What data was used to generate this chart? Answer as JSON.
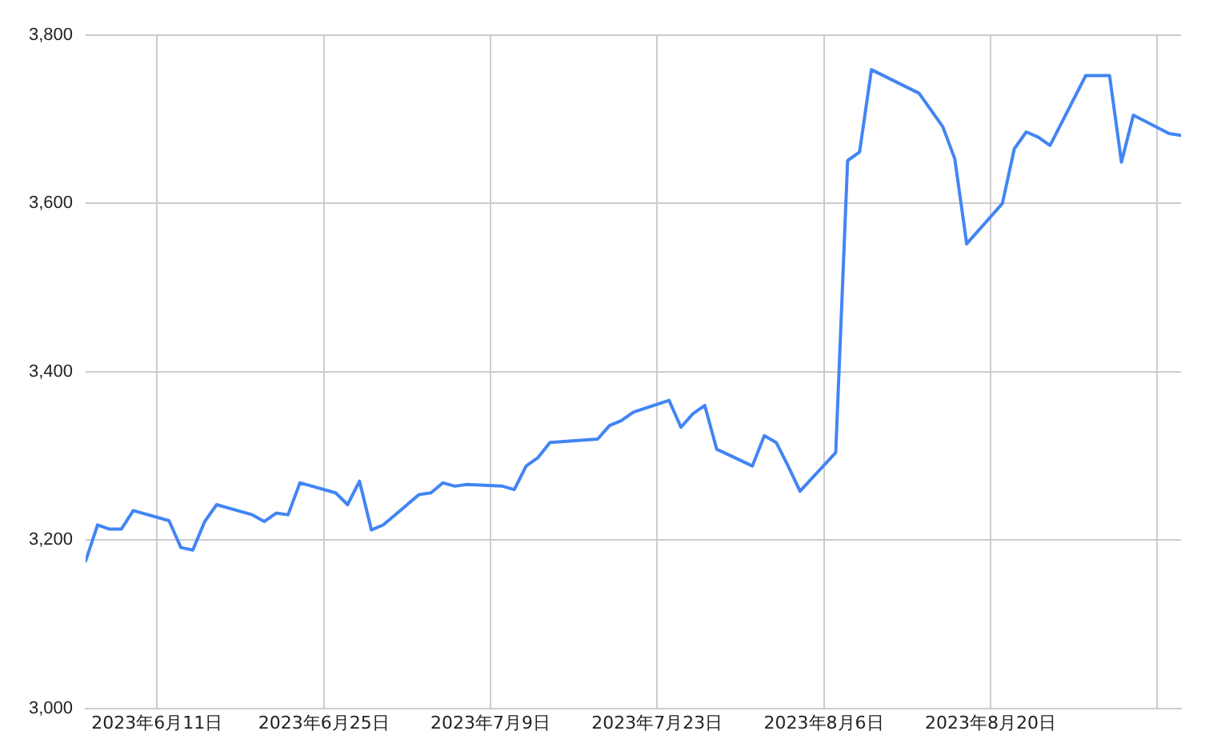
{
  "chart_data": {
    "type": "line",
    "x": [
      "2023-06-05",
      "2023-06-06",
      "2023-06-07",
      "2023-06-08",
      "2023-06-09",
      "2023-06-12",
      "2023-06-13",
      "2023-06-14",
      "2023-06-15",
      "2023-06-16",
      "2023-06-19",
      "2023-06-20",
      "2023-06-21",
      "2023-06-22",
      "2023-06-23",
      "2023-06-26",
      "2023-06-27",
      "2023-06-28",
      "2023-06-29",
      "2023-06-30",
      "2023-07-03",
      "2023-07-04",
      "2023-07-05",
      "2023-07-06",
      "2023-07-07",
      "2023-07-10",
      "2023-07-11",
      "2023-07-12",
      "2023-07-13",
      "2023-07-14",
      "2023-07-18",
      "2023-07-19",
      "2023-07-20",
      "2023-07-21",
      "2023-07-24",
      "2023-07-25",
      "2023-07-26",
      "2023-07-27",
      "2023-07-28",
      "2023-07-31",
      "2023-08-01",
      "2023-08-02",
      "2023-08-03",
      "2023-08-04",
      "2023-08-07",
      "2023-08-08",
      "2023-08-09",
      "2023-08-10",
      "2023-08-14",
      "2023-08-15",
      "2023-08-16",
      "2023-08-17",
      "2023-08-18",
      "2023-08-21",
      "2023-08-22",
      "2023-08-23",
      "2023-08-24",
      "2023-08-25",
      "2023-08-28",
      "2023-08-30",
      "2023-08-31",
      "2023-09-01",
      "2023-09-04",
      "2023-09-05"
    ],
    "series": [
      {
        "color": "#4285f4",
        "values": [
          3175,
          3218,
          3213,
          3213,
          3235,
          3223,
          3191,
          3188,
          3222,
          3242,
          3230,
          3222,
          3232,
          3230,
          3268,
          3256,
          3242,
          3270,
          3212,
          3218,
          3254,
          3256,
          3268,
          3264,
          3266,
          3264,
          3260,
          3288,
          3298,
          3316,
          3320,
          3336,
          3342,
          3352,
          3366,
          3334,
          3350,
          3360,
          3308,
          3288,
          3324,
          3316,
          3288,
          3258,
          3304,
          3651,
          3661,
          3759,
          3731,
          3711,
          3691,
          3653,
          3552,
          3600,
          3665,
          3685,
          3679,
          3669,
          3752,
          3752,
          3649,
          3705,
          3683,
          3681
        ]
      }
    ],
    "xlim": [
      "2023-06-05",
      "2023-09-05"
    ],
    "xticks": [
      {
        "value": "2023-06-11",
        "label": "2023年6月11日"
      },
      {
        "value": "2023-06-25",
        "label": "2023年6月25日"
      },
      {
        "value": "2023-07-09",
        "label": "2023年7月9日"
      },
      {
        "value": "2023-07-23",
        "label": "2023年7月23日"
      },
      {
        "value": "2023-08-06",
        "label": "2023年8月6日"
      },
      {
        "value": "2023-08-20",
        "label": "2023年8月20日"
      },
      {
        "value": "2023-09-03",
        "label": null
      }
    ],
    "ylim": [
      3000,
      3800
    ],
    "yticks": [
      {
        "value": 3000,
        "label": "3,000"
      },
      {
        "value": 3200,
        "label": "3,200"
      },
      {
        "value": 3400,
        "label": "3,400"
      },
      {
        "value": 3600,
        "label": "3,600"
      },
      {
        "value": 3800,
        "label": "3,800"
      }
    ],
    "grid": true,
    "legend": false,
    "marker": "none",
    "line_style": "solid"
  }
}
